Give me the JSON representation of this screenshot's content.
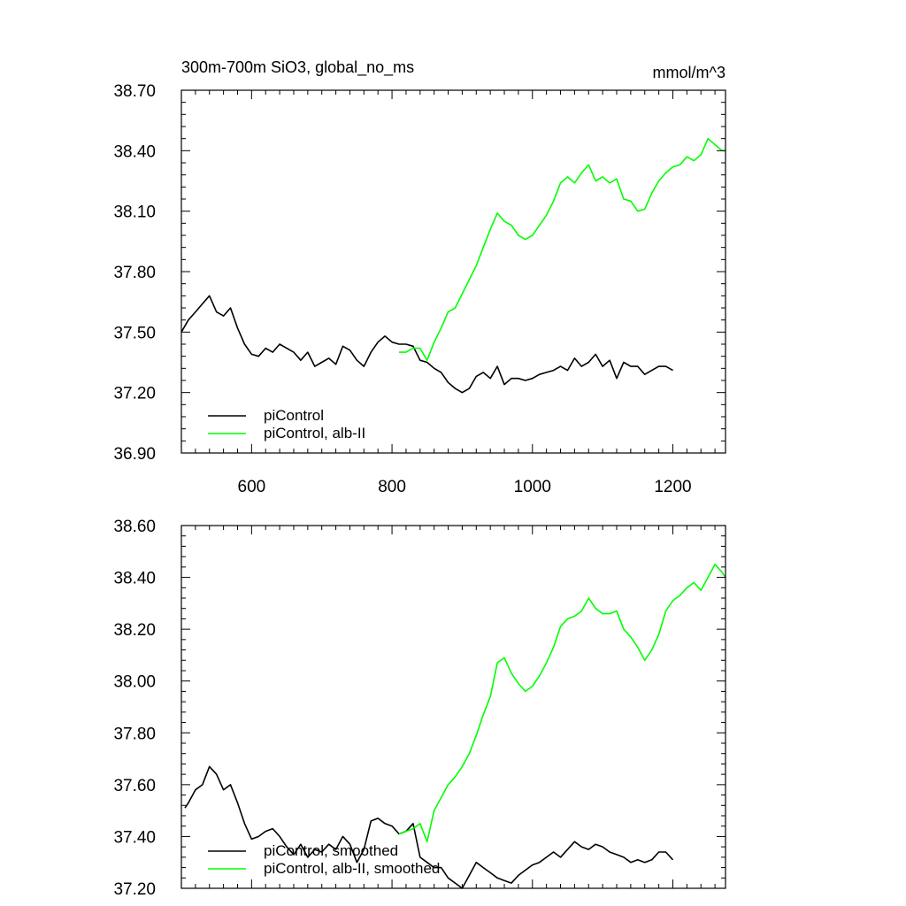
{
  "chart_data": [
    {
      "type": "line",
      "title": "300m-700m SiO3, global_no_ms",
      "units": "mmol/m^3",
      "xlim": [
        500,
        1275
      ],
      "ylim": [
        36.9,
        38.7
      ],
      "xticks": [
        600,
        800,
        1000,
        1200
      ],
      "yticks": [
        36.9,
        37.2,
        37.5,
        37.8,
        38.1,
        38.4,
        38.7
      ],
      "ytick_labels": [
        "36.90",
        "37.20",
        "37.50",
        "37.80",
        "38.10",
        "38.40",
        "38.70"
      ],
      "show_xtick_labels": true,
      "grid": false,
      "legend_position": "bottom-left",
      "series": [
        {
          "name": "piControl",
          "color": "#000000",
          "x": [
            500,
            510,
            520,
            530,
            540,
            550,
            560,
            570,
            580,
            590,
            600,
            610,
            620,
            630,
            640,
            650,
            660,
            670,
            680,
            690,
            700,
            710,
            720,
            730,
            740,
            750,
            760,
            770,
            780,
            790,
            800,
            810,
            820,
            830,
            840,
            850,
            860,
            870,
            880,
            890,
            900,
            910,
            920,
            930,
            940,
            950,
            960,
            970,
            980,
            990,
            1000,
            1010,
            1020,
            1030,
            1040,
            1050,
            1060,
            1070,
            1080,
            1090,
            1100,
            1110,
            1120,
            1130,
            1140,
            1150,
            1160,
            1170,
            1180,
            1190,
            1200
          ],
          "y": [
            37.5,
            37.56,
            37.6,
            37.64,
            37.68,
            37.6,
            37.58,
            37.62,
            37.52,
            37.44,
            37.39,
            37.38,
            37.42,
            37.4,
            37.44,
            37.42,
            37.4,
            37.36,
            37.4,
            37.33,
            37.35,
            37.37,
            37.34,
            37.43,
            37.41,
            37.36,
            37.33,
            37.4,
            37.45,
            37.48,
            37.45,
            37.44,
            37.44,
            37.43,
            37.36,
            37.35,
            37.32,
            37.3,
            37.25,
            37.22,
            37.2,
            37.22,
            37.28,
            37.3,
            37.27,
            37.33,
            37.24,
            37.27,
            37.27,
            37.26,
            37.27,
            37.29,
            37.3,
            37.31,
            37.33,
            37.31,
            37.37,
            37.33,
            37.35,
            37.39,
            37.33,
            37.36,
            37.27,
            37.35,
            37.33,
            37.33,
            37.29,
            37.31,
            37.33,
            37.33,
            37.31
          ]
        },
        {
          "name": "piControl, alb-II",
          "color": "#00ff00",
          "x": [
            810,
            820,
            830,
            840,
            850,
            860,
            870,
            880,
            890,
            900,
            910,
            920,
            930,
            940,
            950,
            960,
            970,
            980,
            990,
            1000,
            1010,
            1020,
            1030,
            1040,
            1050,
            1060,
            1070,
            1080,
            1090,
            1100,
            1110,
            1120,
            1130,
            1140,
            1150,
            1160,
            1170,
            1180,
            1190,
            1200,
            1210,
            1220,
            1230,
            1240,
            1250,
            1260,
            1270,
            1275
          ],
          "y": [
            37.4,
            37.4,
            37.42,
            37.42,
            37.36,
            37.45,
            37.52,
            37.6,
            37.62,
            37.69,
            37.76,
            37.83,
            37.92,
            38.01,
            38.09,
            38.05,
            38.03,
            37.98,
            37.96,
            37.98,
            38.03,
            38.08,
            38.15,
            38.24,
            38.27,
            38.24,
            38.29,
            38.33,
            38.25,
            38.27,
            38.24,
            38.26,
            38.16,
            38.15,
            38.1,
            38.11,
            38.19,
            38.25,
            38.29,
            38.32,
            38.33,
            38.37,
            38.35,
            38.38,
            38.46,
            38.43,
            38.4,
            38.4
          ]
        }
      ]
    },
    {
      "type": "line",
      "title": "",
      "xlim": [
        500,
        1275
      ],
      "ylim": [
        37.2,
        38.6
      ],
      "xticks": [
        600,
        800,
        1000,
        1200
      ],
      "yticks": [
        37.2,
        37.4,
        37.6,
        37.8,
        38.0,
        38.2,
        38.4,
        38.6
      ],
      "ytick_labels": [
        "37.20",
        "37.40",
        "37.60",
        "37.80",
        "38.00",
        "38.20",
        "38.40",
        "38.60"
      ],
      "show_xtick_labels": false,
      "grid": false,
      "legend_position": "bottom-left",
      "series": [
        {
          "name": "piControl, smoothed",
          "color": "#000000",
          "x": [
            505,
            510,
            520,
            530,
            540,
            550,
            560,
            570,
            580,
            590,
            600,
            610,
            620,
            630,
            640,
            650,
            660,
            670,
            680,
            690,
            700,
            710,
            720,
            730,
            740,
            750,
            760,
            770,
            780,
            790,
            800,
            810,
            820,
            830,
            840,
            850,
            860,
            870,
            880,
            890,
            900,
            910,
            920,
            930,
            940,
            950,
            960,
            970,
            980,
            990,
            1000,
            1010,
            1020,
            1030,
            1040,
            1050,
            1060,
            1070,
            1080,
            1090,
            1100,
            1110,
            1120,
            1130,
            1140,
            1150,
            1160,
            1170,
            1180,
            1190,
            1200
          ],
          "y": [
            37.51,
            37.53,
            37.58,
            37.6,
            37.67,
            37.64,
            37.58,
            37.6,
            37.53,
            37.45,
            37.39,
            37.4,
            37.42,
            37.43,
            37.4,
            37.36,
            37.33,
            37.37,
            37.32,
            37.35,
            37.34,
            37.37,
            37.35,
            37.4,
            37.37,
            37.3,
            37.35,
            37.46,
            37.47,
            37.45,
            37.44,
            37.41,
            37.42,
            37.45,
            37.32,
            37.3,
            37.28,
            37.28,
            37.24,
            37.22,
            37.2,
            37.25,
            37.3,
            37.28,
            37.26,
            37.24,
            37.23,
            37.22,
            37.25,
            37.27,
            37.29,
            37.3,
            37.32,
            37.34,
            37.32,
            37.35,
            37.38,
            37.36,
            37.35,
            37.37,
            37.36,
            37.34,
            37.33,
            37.32,
            37.3,
            37.31,
            37.3,
            37.31,
            37.34,
            37.34,
            37.31
          ]
        },
        {
          "name": "piControl, alb-II, smoothed",
          "color": "#00ff00",
          "x": [
            810,
            820,
            830,
            840,
            850,
            860,
            870,
            880,
            890,
            900,
            910,
            920,
            930,
            940,
            950,
            960,
            970,
            980,
            990,
            1000,
            1010,
            1020,
            1030,
            1040,
            1050,
            1060,
            1070,
            1080,
            1090,
            1100,
            1110,
            1120,
            1130,
            1140,
            1150,
            1160,
            1170,
            1180,
            1190,
            1200,
            1210,
            1220,
            1230,
            1240,
            1250,
            1260,
            1270,
            1275
          ],
          "y": [
            37.41,
            37.42,
            37.43,
            37.45,
            37.38,
            37.5,
            37.55,
            37.6,
            37.63,
            37.67,
            37.72,
            37.79,
            37.87,
            37.94,
            38.07,
            38.09,
            38.03,
            37.99,
            37.96,
            37.98,
            38.02,
            38.07,
            38.13,
            38.21,
            38.24,
            38.25,
            38.27,
            38.32,
            38.28,
            38.26,
            38.26,
            38.27,
            38.2,
            38.17,
            38.13,
            38.08,
            38.12,
            38.18,
            38.27,
            38.31,
            38.33,
            38.36,
            38.38,
            38.35,
            38.4,
            38.45,
            38.42,
            38.4
          ]
        }
      ]
    }
  ]
}
